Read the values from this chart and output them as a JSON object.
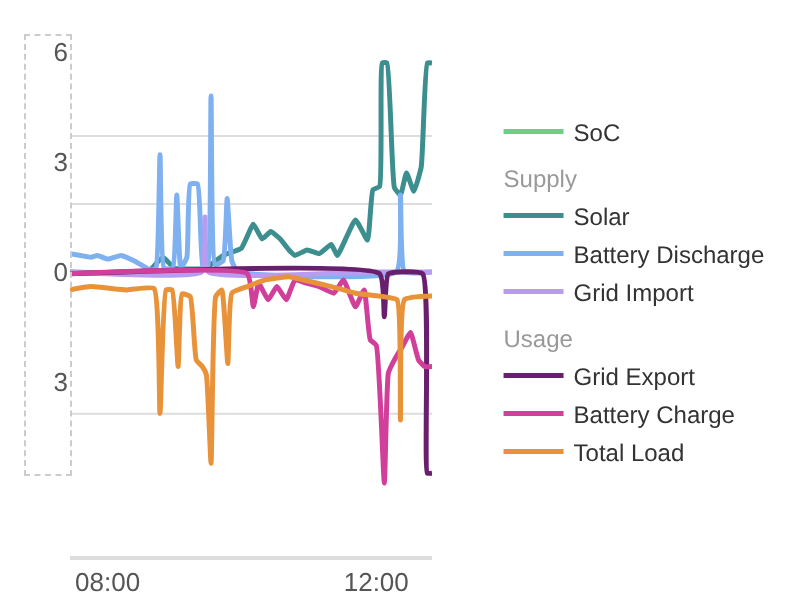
{
  "chart_data": {
    "type": "line",
    "xlim": [
      7.44,
      12.83
    ],
    "ylim": [
      -7.75,
      6
    ],
    "annotations": [
      "Supply",
      "Usage"
    ],
    "xticks": [
      {
        "value": 8,
        "label": "08:00"
      },
      {
        "value": 12,
        "label": "12:00"
      }
    ],
    "yticks": [
      6,
      3,
      0,
      {
        "value": -3,
        "label": "3"
      },
      {
        "value": 3.71,
        "label": null
      },
      {
        "value": 1.85,
        "label": null
      },
      {
        "value": -3.87,
        "label": null
      }
    ],
    "grid": "y",
    "legend": "right",
    "marker": "none",
    "line_style": "solid",
    "series": [
      {
        "name": "SoC",
        "color": "#6fcf8a"
      },
      {
        "name": "Solar",
        "color": "#3d8f8f",
        "x": [
          7.44,
          8.6,
          8.82,
          9.0,
          9.45,
          9.72,
          9.99,
          10.17,
          10.3,
          10.43,
          10.57,
          10.7,
          10.79,
          10.97,
          11.15,
          11.33,
          11.42,
          11.69,
          11.87,
          11.95,
          12.05,
          12.09,
          12.16,
          12.27,
          12.36,
          12.45,
          12.56,
          12.67,
          12.76,
          12.83
        ],
        "values": [
          0,
          0,
          0.4,
          0.1,
          0.1,
          0.45,
          0.64,
          1.3,
          0.9,
          1.1,
          0.9,
          0.6,
          0.45,
          0.6,
          0.5,
          0.75,
          0.45,
          1.42,
          0.87,
          2.24,
          2.33,
          5.7,
          5.7,
          2.3,
          2.1,
          2.7,
          2.2,
          2.87,
          5.7,
          5.7
        ]
      },
      {
        "name": "Battery Discharge",
        "color": "#7fb0f0",
        "x": [
          7.44,
          7.6,
          7.75,
          7.85,
          8.0,
          8.2,
          8.4,
          8.64,
          8.72,
          8.78,
          8.84,
          8.97,
          9.03,
          9.09,
          9.18,
          9.23,
          9.34,
          9.42,
          9.49,
          9.54,
          9.6,
          9.72,
          9.78,
          9.85,
          9.94,
          12.3,
          12.36,
          12.42,
          12.83
        ],
        "values": [
          0.5,
          0.45,
          0.4,
          0.45,
          0.35,
          0.45,
          0.3,
          0.05,
          0.1,
          3.2,
          0.1,
          0.1,
          2.1,
          0.1,
          0.4,
          2.4,
          2.4,
          0.1,
          0.1,
          4.8,
          0.2,
          0.3,
          2.0,
          0.3,
          0,
          0,
          2.1,
          0,
          0
        ]
      },
      {
        "name": "Grid Import",
        "color": "#b89cf0",
        "x": [
          7.44,
          9.4,
          9.45,
          9.5,
          12.0,
          12.83
        ],
        "values": [
          0,
          0,
          1.5,
          0,
          0,
          0
        ]
      },
      {
        "name": "Grid Export",
        "color": "#6a1f6e",
        "x": [
          7.44,
          12.05,
          12.12,
          12.18,
          12.69,
          12.76,
          12.83
        ],
        "values": [
          -0.05,
          -0.05,
          -1.22,
          -0.05,
          -0.05,
          -5.49,
          -5.49
        ]
      },
      {
        "name": "Battery Charge",
        "color": "#d0409a",
        "x": [
          7.44,
          10.08,
          10.17,
          10.25,
          10.39,
          10.52,
          10.66,
          10.79,
          10.97,
          11.15,
          11.37,
          11.51,
          11.69,
          11.82,
          11.91,
          12.0,
          12.12,
          12.18,
          12.27,
          12.4,
          12.51,
          12.63,
          12.72,
          12.83
        ],
        "values": [
          -0.05,
          -0.05,
          -0.95,
          -0.31,
          -0.76,
          -0.4,
          -0.76,
          -0.22,
          -0.31,
          -0.4,
          -0.58,
          -0.22,
          -0.95,
          -0.49,
          -1.85,
          -2.0,
          -5.76,
          -2.76,
          -2.4,
          -2.0,
          -1.65,
          -2.4,
          -2.58,
          -2.58
        ]
      },
      {
        "name": "Total Load",
        "color": "#e8923a",
        "x": [
          7.44,
          7.75,
          8.29,
          8.69,
          8.78,
          8.87,
          8.96,
          9.05,
          9.11,
          9.23,
          9.32,
          9.41,
          9.47,
          9.54,
          9.61,
          9.7,
          9.79,
          9.85,
          10.08,
          10.34,
          10.7,
          10.92,
          11.33,
          11.69,
          12.05,
          12.31,
          12.36,
          12.42,
          12.83
        ],
        "values": [
          -0.49,
          -0.4,
          -0.49,
          -0.45,
          -3.86,
          -0.49,
          -0.49,
          -2.58,
          -0.6,
          -0.67,
          -2.4,
          -2.58,
          -2.8,
          -5.22,
          -0.67,
          -0.49,
          -2.5,
          -0.58,
          -0.4,
          -0.22,
          -0.13,
          -0.22,
          -0.4,
          -0.58,
          -0.66,
          -0.76,
          -4.04,
          -0.76,
          -0.66
        ]
      }
    ]
  }
}
